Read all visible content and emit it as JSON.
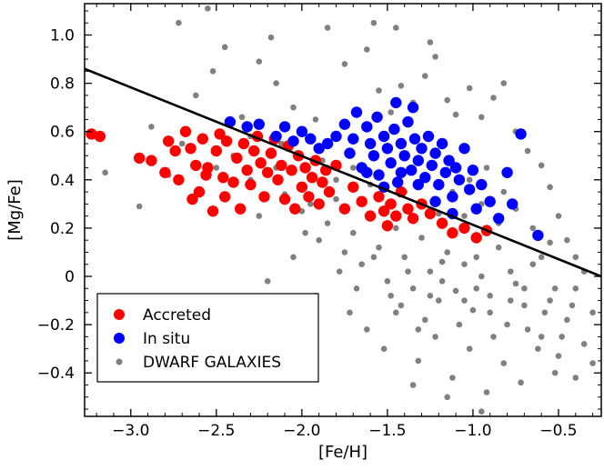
{
  "chart_data": {
    "type": "scatter",
    "title": "",
    "xlabel": "[Fe/H]",
    "ylabel": "[Mg/Fe]",
    "xlim": [
      -3.27,
      -0.25
    ],
    "ylim": [
      -0.58,
      1.13
    ],
    "x_ticks": [
      -3.0,
      -2.5,
      -2.0,
      -1.5,
      -1.0,
      -0.5
    ],
    "x_tick_labels": [
      "−3.0",
      "−2.5",
      "−2.0",
      "−1.5",
      "−1.0",
      "−0.5"
    ],
    "y_ticks": [
      -0.4,
      -0.2,
      0,
      0.2,
      0.4,
      0.6,
      0.8,
      1.0
    ],
    "y_tick_labels": [
      "−0.4",
      "−0.2",
      "0",
      "0.2",
      "0.4",
      "0.6",
      "0.8",
      "1.0"
    ],
    "grid": false,
    "legend_position": "lower-left",
    "dividing_line": {
      "x": [
        -3.27,
        -0.25
      ],
      "y": [
        0.86,
        0.0
      ],
      "color": "#000000"
    },
    "series": [
      {
        "name": "DWARF GALAXIES",
        "color": "#808080",
        "marker": "small-dot",
        "points": [
          [
            -3.15,
            0.43
          ],
          [
            -2.95,
            0.29
          ],
          [
            -2.88,
            0.62
          ],
          [
            -2.72,
            1.05
          ],
          [
            -2.62,
            0.75
          ],
          [
            -2.52,
            0.85
          ],
          [
            -2.45,
            0.95
          ],
          [
            -2.35,
            0.66
          ],
          [
            -2.25,
            0.89
          ],
          [
            -2.18,
            0.99
          ],
          [
            -2.12,
            0.55
          ],
          [
            -2.05,
            0.7
          ],
          [
            -1.92,
            0.65
          ],
          [
            -1.85,
            1.03
          ],
          [
            -1.75,
            0.88
          ],
          [
            -1.62,
            0.94
          ],
          [
            -1.55,
            0.77
          ],
          [
            -1.48,
            0.68
          ],
          [
            -1.42,
            0.79
          ],
          [
            -1.35,
            0.72
          ],
          [
            -1.28,
            0.83
          ],
          [
            -1.22,
            0.91
          ],
          [
            -1.15,
            0.73
          ],
          [
            -1.1,
            0.67
          ],
          [
            -1.02,
            0.78
          ],
          [
            -0.95,
            0.66
          ],
          [
            -0.88,
            0.74
          ],
          [
            -0.82,
            0.8
          ],
          [
            -0.75,
            0.6
          ],
          [
            -0.68,
            0.52
          ],
          [
            -0.6,
            0.46
          ],
          [
            -0.55,
            0.37
          ],
          [
            -0.5,
            0.25
          ],
          [
            -0.45,
            0.15
          ],
          [
            -0.4,
            0.08
          ],
          [
            -0.35,
            0.02
          ],
          [
            -2.55,
            1.11
          ],
          [
            -1.45,
            1.03
          ],
          [
            -1.25,
            0.97
          ],
          [
            -2.15,
            0.8
          ],
          [
            -1.58,
            1.05
          ],
          [
            -2.2,
            -0.02
          ],
          [
            -2.3,
            0.4
          ],
          [
            -2.1,
            0.34
          ],
          [
            -2.0,
            0.27
          ],
          [
            -1.95,
            0.3
          ],
          [
            -1.9,
            0.15
          ],
          [
            -1.85,
            0.22
          ],
          [
            -1.8,
            0.32
          ],
          [
            -1.75,
            0.1
          ],
          [
            -1.7,
            0.18
          ],
          [
            -1.65,
            0.05
          ],
          [
            -1.6,
            0.25
          ],
          [
            -1.55,
            0.12
          ],
          [
            -1.5,
            -0.02
          ],
          [
            -1.45,
            0.2
          ],
          [
            -1.4,
            0.08
          ],
          [
            -1.35,
            -0.05
          ],
          [
            -1.3,
            0.16
          ],
          [
            -1.25,
            0.02
          ],
          [
            -1.2,
            -0.1
          ],
          [
            -1.15,
            0.1
          ],
          [
            -1.1,
            -0.06
          ],
          [
            -1.05,
            0.05
          ],
          [
            -1.0,
            -0.14
          ],
          [
            -0.95,
            0.0
          ],
          [
            -0.9,
            -0.08
          ],
          [
            -0.85,
            0.12
          ],
          [
            -0.8,
            -0.2
          ],
          [
            -0.75,
            -0.03
          ],
          [
            -0.7,
            -0.12
          ],
          [
            -0.65,
            0.05
          ],
          [
            -0.6,
            -0.25
          ],
          [
            -0.55,
            -0.1
          ],
          [
            -0.5,
            -0.33
          ],
          [
            -0.45,
            -0.18
          ],
          [
            -0.4,
            -0.05
          ],
          [
            -0.35,
            -0.28
          ],
          [
            -0.3,
            -0.15
          ],
          [
            -1.72,
            -0.15
          ],
          [
            -1.62,
            -0.22
          ],
          [
            -1.52,
            -0.3
          ],
          [
            -1.42,
            -0.12
          ],
          [
            -1.32,
            -0.35
          ],
          [
            -1.22,
            -0.25
          ],
          [
            -1.12,
            -0.42
          ],
          [
            -1.02,
            -0.3
          ],
          [
            -0.92,
            -0.48
          ],
          [
            -0.82,
            -0.36
          ],
          [
            -0.72,
            -0.44
          ],
          [
            -0.62,
            -0.3
          ],
          [
            -0.52,
            -0.4
          ],
          [
            -1.15,
            -0.5
          ],
          [
            -0.95,
            -0.56
          ],
          [
            -1.35,
            -0.45
          ],
          [
            -0.4,
            -0.42
          ],
          [
            -0.3,
            -0.36
          ],
          [
            -1.78,
            0.02
          ],
          [
            -1.68,
            -0.05
          ],
          [
            -1.58,
            0.08
          ],
          [
            -1.48,
            -0.08
          ],
          [
            -1.38,
            0.02
          ],
          [
            -1.28,
            -0.18
          ],
          [
            -1.18,
            -0.02
          ],
          [
            -1.08,
            -0.2
          ],
          [
            -0.98,
            -0.05
          ],
          [
            -0.88,
            -0.25
          ],
          [
            -0.78,
            -0.1
          ],
          [
            -0.68,
            -0.22
          ],
          [
            -0.58,
            -0.15
          ],
          [
            -0.48,
            -0.25
          ],
          [
            -1.92,
            -0.08
          ],
          [
            -2.05,
            0.08
          ],
          [
            -1.98,
            0.18
          ],
          [
            -2.25,
            0.25
          ],
          [
            -2.4,
            0.5
          ],
          [
            -2.5,
            0.45
          ],
          [
            -2.6,
            0.35
          ],
          [
            -2.7,
            0.55
          ],
          [
            -2.78,
            0.42
          ],
          [
            -2.3,
            0.58
          ],
          [
            -2.15,
            0.45
          ],
          [
            -1.05,
            0.25
          ],
          [
            -0.95,
            0.3
          ],
          [
            -0.85,
            0.22
          ],
          [
            -0.75,
            0.28
          ],
          [
            -0.65,
            0.2
          ],
          [
            -0.55,
            0.14
          ],
          [
            -1.12,
            0.35
          ],
          [
            -1.02,
            0.4
          ],
          [
            -0.92,
            0.45
          ],
          [
            -0.82,
            0.35
          ],
          [
            -1.3,
            0.3
          ],
          [
            -1.2,
            0.26
          ],
          [
            -1.4,
            0.35
          ],
          [
            -1.5,
            0.3
          ],
          [
            -1.6,
            0.38
          ],
          [
            -1.7,
            0.45
          ],
          [
            -1.8,
            0.4
          ],
          [
            -1.88,
            0.48
          ],
          [
            -1.25,
            -0.08
          ],
          [
            -1.05,
            -0.1
          ],
          [
            -0.9,
            -0.15
          ],
          [
            -1.18,
            0.06
          ],
          [
            -0.98,
            0.08
          ],
          [
            -0.78,
            0.02
          ],
          [
            -1.45,
            -0.15
          ],
          [
            -1.32,
            -0.22
          ],
          [
            -0.7,
            -0.05
          ],
          [
            -0.6,
            0.08
          ],
          [
            -0.52,
            -0.05
          ],
          [
            -0.42,
            -0.12
          ]
        ]
      },
      {
        "name": "Accreted",
        "color": "#ff0000",
        "marker": "circle",
        "points": [
          [
            -3.23,
            0.59
          ],
          [
            -3.18,
            0.58
          ],
          [
            -2.95,
            0.49
          ],
          [
            -2.88,
            0.48
          ],
          [
            -2.78,
            0.56
          ],
          [
            -2.72,
            0.4
          ],
          [
            -2.68,
            0.6
          ],
          [
            -2.65,
            0.53
          ],
          [
            -2.62,
            0.46
          ],
          [
            -2.6,
            0.35
          ],
          [
            -2.58,
            0.57
          ],
          [
            -2.55,
            0.45
          ],
          [
            -2.52,
            0.27
          ],
          [
            -2.5,
            0.52
          ],
          [
            -2.48,
            0.59
          ],
          [
            -2.46,
            0.41
          ],
          [
            -2.44,
            0.56
          ],
          [
            -2.4,
            0.39
          ],
          [
            -2.38,
            0.49
          ],
          [
            -2.36,
            0.28
          ],
          [
            -2.34,
            0.55
          ],
          [
            -2.32,
            0.44
          ],
          [
            -2.3,
            0.38
          ],
          [
            -2.28,
            0.52
          ],
          [
            -2.26,
            0.58
          ],
          [
            -2.24,
            0.47
          ],
          [
            -2.22,
            0.33
          ],
          [
            -2.2,
            0.43
          ],
          [
            -2.18,
            0.51
          ],
          [
            -2.16,
            0.57
          ],
          [
            -2.14,
            0.4
          ],
          [
            -2.12,
            0.46
          ],
          [
            -2.1,
            0.32
          ],
          [
            -2.08,
            0.54
          ],
          [
            -2.06,
            0.44
          ],
          [
            -2.04,
            0.28
          ],
          [
            -2.02,
            0.5
          ],
          [
            -2.0,
            0.37
          ],
          [
            -1.98,
            0.45
          ],
          [
            -1.96,
            0.33
          ],
          [
            -1.94,
            0.41
          ],
          [
            -1.92,
            0.48
          ],
          [
            -1.9,
            0.3
          ],
          [
            -1.88,
            0.39
          ],
          [
            -1.86,
            0.44
          ],
          [
            -1.84,
            0.35
          ],
          [
            -1.8,
            0.46
          ],
          [
            -1.75,
            0.28
          ],
          [
            -1.7,
            0.37
          ],
          [
            -1.65,
            0.31
          ],
          [
            -1.6,
            0.25
          ],
          [
            -1.55,
            0.33
          ],
          [
            -1.52,
            0.27
          ],
          [
            -1.5,
            0.21
          ],
          [
            -1.48,
            0.3
          ],
          [
            -1.45,
            0.25
          ],
          [
            -1.42,
            0.35
          ],
          [
            -1.38,
            0.28
          ],
          [
            -1.35,
            0.24
          ],
          [
            -1.3,
            0.3
          ],
          [
            -1.25,
            0.26
          ],
          [
            -1.18,
            0.22
          ],
          [
            -1.12,
            0.18
          ],
          [
            -1.05,
            0.2
          ],
          [
            -0.98,
            0.16
          ],
          [
            -0.92,
            0.19
          ],
          [
            -2.8,
            0.43
          ],
          [
            -2.74,
            0.52
          ],
          [
            -2.64,
            0.32
          ],
          [
            -2.56,
            0.42
          ],
          [
            -2.45,
            0.33
          ]
        ]
      },
      {
        "name": "In situ",
        "color": "#0000ff",
        "marker": "circle",
        "points": [
          [
            -2.42,
            0.64
          ],
          [
            -2.32,
            0.62
          ],
          [
            -2.25,
            0.63
          ],
          [
            -2.15,
            0.58
          ],
          [
            -2.1,
            0.62
          ],
          [
            -2.05,
            0.56
          ],
          [
            -2.0,
            0.6
          ],
          [
            -1.95,
            0.57
          ],
          [
            -1.9,
            0.53
          ],
          [
            -1.85,
            0.55
          ],
          [
            -1.8,
            0.58
          ],
          [
            -1.75,
            0.63
          ],
          [
            -1.72,
            0.51
          ],
          [
            -1.7,
            0.57
          ],
          [
            -1.68,
            0.68
          ],
          [
            -1.65,
            0.45
          ],
          [
            -1.62,
            0.62
          ],
          [
            -1.6,
            0.55
          ],
          [
            -1.58,
            0.5
          ],
          [
            -1.56,
            0.66
          ],
          [
            -1.55,
            0.42
          ],
          [
            -1.52,
            0.58
          ],
          [
            -1.5,
            0.53
          ],
          [
            -1.48,
            0.47
          ],
          [
            -1.46,
            0.61
          ],
          [
            -1.44,
            0.39
          ],
          [
            -1.42,
            0.55
          ],
          [
            -1.4,
            0.5
          ],
          [
            -1.38,
            0.64
          ],
          [
            -1.36,
            0.44
          ],
          [
            -1.34,
            0.57
          ],
          [
            -1.32,
            0.48
          ],
          [
            -1.3,
            0.53
          ],
          [
            -1.28,
            0.41
          ],
          [
            -1.26,
            0.58
          ],
          [
            -1.24,
            0.46
          ],
          [
            -1.22,
            0.51
          ],
          [
            -1.2,
            0.38
          ],
          [
            -1.18,
            0.55
          ],
          [
            -1.16,
            0.43
          ],
          [
            -1.14,
            0.48
          ],
          [
            -1.12,
            0.33
          ],
          [
            -1.1,
            0.45
          ],
          [
            -1.08,
            0.4
          ],
          [
            -1.05,
            0.53
          ],
          [
            -1.02,
            0.36
          ],
          [
            -1.0,
            0.44
          ],
          [
            -0.98,
            0.28
          ],
          [
            -0.95,
            0.38
          ],
          [
            -0.9,
            0.31
          ],
          [
            -0.85,
            0.24
          ],
          [
            -0.8,
            0.43
          ],
          [
            -0.77,
            0.3
          ],
          [
            -0.72,
            0.59
          ],
          [
            -0.62,
            0.17
          ],
          [
            -1.62,
            0.43
          ],
          [
            -1.52,
            0.37
          ],
          [
            -1.42,
            0.43
          ],
          [
            -1.32,
            0.38
          ],
          [
            -1.22,
            0.31
          ],
          [
            -1.12,
            0.26
          ],
          [
            -1.35,
            0.7
          ],
          [
            -1.45,
            0.72
          ]
        ]
      }
    ]
  }
}
